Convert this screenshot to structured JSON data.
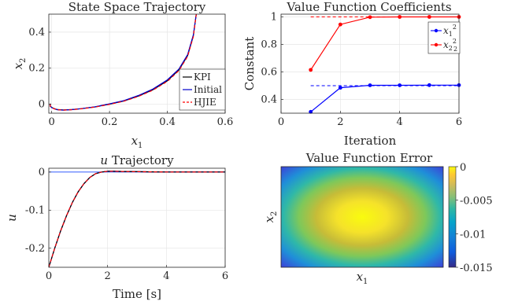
{
  "chart_data": [
    {
      "type": "line",
      "title": "State Space Trajectory",
      "xlabel": "x1",
      "ylabel": "x2",
      "xlim": [
        -0.01,
        0.6
      ],
      "ylim": [
        -0.05,
        0.5
      ],
      "xticks": [
        "0",
        "0.2",
        "0.4",
        "0.6"
      ],
      "yticks": [
        "0",
        "0.2",
        "0.4"
      ],
      "grid": true,
      "legend": "bottom-right",
      "series": [
        {
          "name": "KPI",
          "color": "#000000",
          "style": "solid",
          "x": [
            0.5,
            0.49,
            0.47,
            0.44,
            0.4,
            0.35,
            0.3,
            0.25,
            0.2,
            0.15,
            0.1,
            0.07,
            0.04,
            0.02,
            0.01,
            0.0,
            -0.005,
            -0.005,
            -0.003
          ],
          "y": [
            0.5,
            0.38,
            0.27,
            0.19,
            0.13,
            0.08,
            0.045,
            0.018,
            0.0,
            -0.015,
            -0.025,
            -0.03,
            -0.032,
            -0.03,
            -0.025,
            -0.018,
            -0.01,
            0.0,
            0.0
          ]
        },
        {
          "name": "Initial",
          "color": "#0000cc",
          "style": "solid",
          "x": [
            0.5,
            0.49,
            0.47,
            0.44,
            0.4,
            0.35,
            0.3,
            0.25,
            0.2,
            0.15,
            0.1,
            0.07,
            0.04,
            0.02,
            0.01,
            0.0,
            -0.005,
            -0.005,
            -0.003
          ],
          "y": [
            0.5,
            0.385,
            0.275,
            0.195,
            0.135,
            0.084,
            0.048,
            0.02,
            0.002,
            -0.014,
            -0.025,
            -0.03,
            -0.033,
            -0.031,
            -0.026,
            -0.019,
            -0.011,
            -0.001,
            0.0
          ]
        },
        {
          "name": "HJIE",
          "color": "#ff0000",
          "style": "dashed",
          "x": [
            0.5,
            0.49,
            0.47,
            0.44,
            0.4,
            0.35,
            0.3,
            0.25,
            0.2,
            0.15,
            0.1,
            0.07,
            0.04,
            0.02,
            0.01,
            0.0,
            -0.005,
            -0.005,
            -0.003
          ],
          "y": [
            0.5,
            0.375,
            0.265,
            0.186,
            0.127,
            0.078,
            0.043,
            0.017,
            -0.001,
            -0.016,
            -0.026,
            -0.031,
            -0.033,
            -0.031,
            -0.026,
            -0.019,
            -0.011,
            -0.001,
            0.0
          ]
        }
      ]
    },
    {
      "type": "line",
      "title": "Value Function Coefficients",
      "xlabel": "Iteration",
      "ylabel": "Constant",
      "xlim": [
        0,
        6
      ],
      "ylim": [
        0.3,
        1.02
      ],
      "xticks": [
        "0",
        "2",
        "4",
        "6"
      ],
      "yticks": [
        "0.4",
        "0.6",
        "0.8",
        "1"
      ],
      "grid": true,
      "legend": "top-right",
      "series": [
        {
          "name": "x1^2",
          "color": "#0000ff",
          "marker": "circle",
          "x": [
            1,
            2,
            3,
            4,
            5,
            6
          ],
          "y": [
            0.31,
            0.485,
            0.503,
            0.503,
            0.504,
            0.504
          ]
        },
        {
          "name": "x2^2/2",
          "color": "#ff0000",
          "marker": "circle",
          "x": [
            1,
            2,
            3,
            4,
            5,
            6
          ],
          "y": [
            0.615,
            0.945,
            0.998,
            1.0,
            1.0,
            1.0
          ]
        }
      ],
      "reference_lines": [
        {
          "color": "#0000ff",
          "style": "dashed",
          "y": 0.5,
          "x": [
            1,
            6
          ]
        },
        {
          "color": "#ff0000",
          "style": "dashed",
          "y": 1.0,
          "x": [
            1,
            6
          ]
        }
      ]
    },
    {
      "type": "line",
      "title": "u Trajectory",
      "xlabel": "Time [s]",
      "ylabel": "u",
      "xlim": [
        0,
        6
      ],
      "ylim": [
        -0.25,
        0.01
      ],
      "xticks": [
        "0",
        "2",
        "4",
        "6"
      ],
      "yticks": [
        "0",
        "-0.1",
        "-0.2"
      ],
      "grid": true,
      "series": [
        {
          "name": "Initial",
          "color": "#0000cc",
          "style": "solid",
          "x": [
            0,
            0.2,
            0.4,
            0.6,
            0.8,
            1.0,
            1.2,
            1.4,
            1.6,
            1.8,
            2.0,
            2.2,
            2.5,
            3.0,
            3.5,
            4.0,
            6.0
          ],
          "y": [
            -0.25,
            -0.2,
            -0.155,
            -0.115,
            -0.08,
            -0.052,
            -0.03,
            -0.014,
            -0.004,
            0.0,
            0.002,
            0.002,
            0.0015,
            0.001,
            0.0005,
            0.0,
            0.0
          ]
        },
        {
          "name": "KPI",
          "color": "#000000",
          "style": "solid",
          "x": [
            0,
            0.2,
            0.4,
            0.6,
            0.8,
            1.0,
            1.2,
            1.4,
            1.6,
            1.8,
            2.0,
            2.2,
            2.5,
            3.0,
            3.5,
            4.0,
            6.0
          ],
          "y": [
            -0.25,
            -0.2,
            -0.155,
            -0.115,
            -0.08,
            -0.052,
            -0.03,
            -0.014,
            -0.004,
            0.0,
            0.002,
            0.002,
            0.0015,
            0.001,
            0.0005,
            0.0,
            0.0
          ]
        },
        {
          "name": "HJIE",
          "color": "#ff0000",
          "style": "dashed",
          "x": [
            0,
            0.2,
            0.4,
            0.6,
            0.8,
            1.0,
            1.2,
            1.4,
            1.6,
            1.8,
            2.0,
            2.2,
            2.5,
            3.0,
            3.5,
            4.0,
            6.0
          ],
          "y": [
            -0.25,
            -0.2,
            -0.155,
            -0.115,
            -0.08,
            -0.052,
            -0.03,
            -0.014,
            -0.004,
            0.0,
            0.002,
            0.002,
            0.0015,
            0.001,
            0.0005,
            0.0,
            0.0
          ]
        }
      ],
      "reference_lines": [
        {
          "color": "#4a6fff",
          "style": "solid",
          "y": 0.0,
          "x": [
            0,
            6
          ]
        }
      ]
    },
    {
      "type": "heatmap",
      "title": "Value Function Error",
      "xlabel": "x1",
      "ylabel": "x2",
      "colorbar": {
        "min": -0.015,
        "max": 0,
        "ticks": [
          "0",
          "-0.005",
          "-0.01",
          "-0.015"
        ],
        "colormap": "parula"
      },
      "description_values": {
        "center": 0.0,
        "corners": -0.015
      }
    }
  ]
}
